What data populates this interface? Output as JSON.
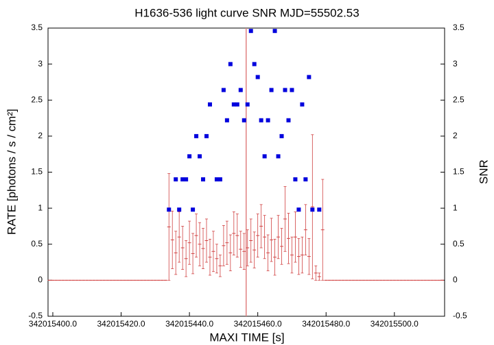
{
  "chart_data": {
    "type": "errorbar_scatter",
    "title": "H1636-536 light curve  SNR MJD=55502.53",
    "x_label": "MAXI TIME [s]",
    "y_label": "RATE [photons / s / cm²]",
    "y2_label": "SNR",
    "xlim": [
      342015398.6,
      342015514.7
    ],
    "ylim": [
      -0.5,
      3.5
    ],
    "y2lim": [
      -0.5,
      3.5
    ],
    "xticks": [
      {
        "value": 342015400,
        "label": "342015400.0"
      },
      {
        "value": 342015420,
        "label": "342015420.0"
      },
      {
        "value": 342015440,
        "label": "342015440.0"
      },
      {
        "value": 342015460,
        "label": "342015460.0"
      },
      {
        "value": 342015480,
        "label": "342015480.0"
      },
      {
        "value": 342015500,
        "label": "342015500.0"
      }
    ],
    "yticks": [
      -0.5,
      0,
      0.5,
      1,
      1.5,
      2,
      2.5,
      3,
      3.5
    ],
    "y2ticks": [
      -0.5,
      0,
      0.5,
      1,
      1.5,
      2,
      2.5,
      3,
      3.5
    ],
    "vline": 342015456.6,
    "vline_color": "#e08080",
    "series": [
      {
        "name": "RATE",
        "color": "#d04040",
        "x": [
          342015399,
          342015400,
          342015401,
          342015402,
          342015403,
          342015404,
          342015405,
          342015406,
          342015407,
          342015408,
          342015409,
          342015410,
          342015411,
          342015412,
          342015413,
          342015414,
          342015415,
          342015416,
          342015417,
          342015418,
          342015419,
          342015420,
          342015421,
          342015422,
          342015423,
          342015424,
          342015425,
          342015426,
          342015427,
          342015428,
          342015429,
          342015430,
          342015431,
          342015432,
          342015433,
          342015434,
          342015435,
          342015436,
          342015437,
          342015438,
          342015439,
          342015440,
          342015441,
          342015442,
          342015443,
          342015444,
          342015445,
          342015446,
          342015447,
          342015448,
          342015449,
          342015450,
          342015451,
          342015452,
          342015453,
          342015454,
          342015455,
          342015456,
          342015457,
          342015458,
          342015459,
          342015460,
          342015461,
          342015462,
          342015463,
          342015464,
          342015465,
          342015466,
          342015467,
          342015468,
          342015469,
          342015470,
          342015471,
          342015472,
          342015473,
          342015474,
          342015475,
          342015476,
          342015477,
          342015478,
          342015479,
          342015480,
          342015481,
          342015482,
          342015483,
          342015484,
          342015485,
          342015486,
          342015487,
          342015488,
          342015489,
          342015490,
          342015491,
          342015492,
          342015493,
          342015494,
          342015495,
          342015496,
          342015497,
          342015498,
          342015499,
          342015500,
          342015501,
          342015502,
          342015503,
          342015504,
          342015505,
          342015506,
          342015507,
          342015508,
          342015509,
          342015510,
          342015511,
          342015512,
          342015513,
          342015514
        ],
        "values": [
          0,
          0,
          0,
          0,
          0,
          0,
          0,
          0,
          0,
          0,
          0,
          0,
          0,
          0,
          0,
          0,
          0,
          0,
          0,
          0,
          0,
          0,
          0,
          0,
          0,
          0,
          0,
          0,
          0,
          0,
          0,
          0,
          0,
          0,
          0,
          0.74,
          0.56,
          0.38,
          0.6,
          0.45,
          0.3,
          0.52,
          0.37,
          0.62,
          0.5,
          0.44,
          0.55,
          0.32,
          0.4,
          0.3,
          0.2,
          0.48,
          0.52,
          0.38,
          0.65,
          0.62,
          0.43,
          0.4,
          0.45,
          0.55,
          0.42,
          0.62,
          0.75,
          0.6,
          0.38,
          0.56,
          0.32,
          0.6,
          0.47,
          0.85,
          0.58,
          0.35,
          0.6,
          0.33,
          0.35,
          0.7,
          0.33,
          1.02,
          0.1,
          0.05,
          0.7,
          0,
          0,
          0,
          0,
          0,
          0,
          0,
          0,
          0,
          0,
          0,
          0,
          0,
          0,
          0,
          0,
          0,
          0,
          0,
          0,
          0,
          0,
          0,
          0,
          0,
          0,
          0,
          0,
          0,
          0,
          0,
          0,
          0,
          0,
          0
        ],
        "errors": [
          0,
          0,
          0,
          0,
          0,
          0,
          0,
          0,
          0,
          0,
          0,
          0,
          0,
          0,
          0,
          0,
          0,
          0,
          0,
          0,
          0,
          0,
          0,
          0,
          0,
          0,
          0,
          0,
          0,
          0,
          0,
          0,
          0,
          0,
          0,
          0.74,
          0.4,
          0.3,
          0.35,
          0.3,
          0.25,
          0.3,
          0.28,
          0.3,
          0.3,
          0.28,
          0.3,
          0.25,
          0.28,
          0.2,
          0.15,
          0.28,
          0.3,
          0.25,
          0.3,
          0.3,
          0.25,
          0.25,
          0.25,
          0.3,
          0.25,
          0.3,
          0.3,
          0.3,
          0.25,
          0.3,
          0.25,
          0.3,
          0.25,
          0.45,
          0.35,
          0.25,
          0.35,
          0.25,
          0.25,
          0.35,
          0.25,
          1.0,
          0.1,
          0.05,
          0.7,
          0,
          0,
          0,
          0,
          0,
          0,
          0,
          0,
          0,
          0,
          0,
          0,
          0,
          0,
          0,
          0,
          0,
          0,
          0,
          0,
          0,
          0,
          0,
          0,
          0,
          0,
          0,
          0,
          0,
          0,
          0,
          0,
          0,
          0,
          0
        ]
      },
      {
        "name": "SNR",
        "color": "#0000dd",
        "axis": "y2",
        "x": [
          342015434,
          342015436,
          342015437,
          342015438,
          342015439,
          342015440,
          342015441,
          342015442,
          342015443,
          342015444,
          342015445,
          342015446,
          342015448,
          342015449,
          342015450,
          342015451,
          342015452,
          342015453,
          342015454,
          342015455,
          342015456,
          342015457,
          342015458,
          342015459,
          342015460,
          342015461,
          342015462,
          342015463,
          342015464,
          342015465,
          342015466,
          342015467,
          342015468,
          342015469,
          342015470,
          342015471,
          342015472,
          342015473,
          342015474,
          342015475,
          342015476,
          342015478
        ],
        "values": [
          0.98,
          1.4,
          0.98,
          1.4,
          1.4,
          1.72,
          0.98,
          2.0,
          1.72,
          1.4,
          2.0,
          2.44,
          1.4,
          1.4,
          2.64,
          2.22,
          3.0,
          2.44,
          2.44,
          2.64,
          2.22,
          2.44,
          3.46,
          3.0,
          2.82,
          2.22,
          1.72,
          2.22,
          2.64,
          3.46,
          1.72,
          2.0,
          2.64,
          2.22,
          2.64,
          1.4,
          0.98,
          2.44,
          1.4,
          2.82,
          0.98,
          0.98
        ]
      }
    ]
  }
}
